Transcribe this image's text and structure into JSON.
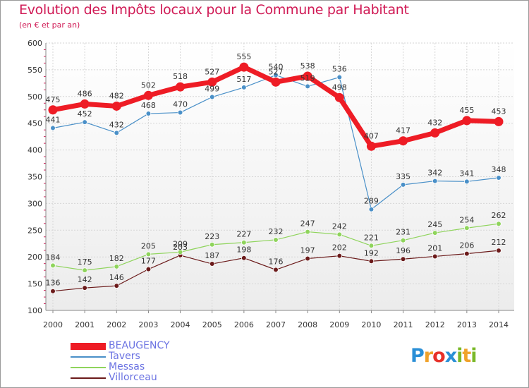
{
  "chart_data": {
    "type": "line",
    "title": "Evolution des Impôts locaux pour la Commune par Habitant",
    "subtitle": "(en € et par an)",
    "categories": [
      "2000",
      "2001",
      "2002",
      "2003",
      "2004",
      "2005",
      "2006",
      "2007",
      "2008",
      "2009",
      "2010",
      "2011",
      "2012",
      "2013",
      "2014"
    ],
    "ylim": [
      100,
      600
    ],
    "yticks": [
      "100",
      "150",
      "200",
      "250",
      "300",
      "350",
      "400",
      "450",
      "500",
      "550",
      "600"
    ],
    "series": [
      {
        "name": "Villorceau",
        "color": "#6b1a1a",
        "values": [
          136,
          142,
          146,
          177,
          203,
          187,
          198,
          176,
          197,
          202,
          192,
          196,
          201,
          206,
          212
        ]
      },
      {
        "name": "Messas",
        "color": "#8fd45c",
        "values": [
          184,
          175,
          182,
          205,
          209,
          223,
          227,
          232,
          247,
          242,
          221,
          231,
          245,
          254,
          262
        ]
      },
      {
        "name": "Tavers",
        "color": "#4a90c8",
        "values": [
          441,
          452,
          432,
          468,
          470,
          499,
          517,
          540,
          519,
          536,
          289,
          335,
          342,
          341,
          348
        ]
      },
      {
        "name": "BEAUGENCY",
        "color": "#ee1c25",
        "values": [
          475,
          486,
          482,
          502,
          518,
          527,
          555,
          527,
          538,
          498,
          407,
          417,
          432,
          455,
          453
        ]
      }
    ]
  },
  "legend": {
    "beaugency": "BEAUGENCY",
    "tavers": "Tavers",
    "messas": "Messas",
    "villorceau": "Villorceau"
  },
  "logo": {
    "p": "P",
    "r": "r",
    "o": "o",
    "x": "x",
    "i1": "i",
    "t": "t",
    "i2": "i"
  }
}
